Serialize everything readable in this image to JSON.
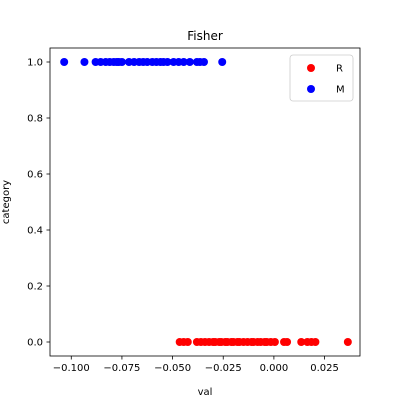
{
  "chart_data": {
    "type": "scatter",
    "title": "Fisher",
    "xlabel": "val",
    "ylabel": "category",
    "xlim": [
      -0.1105,
      0.0425
    ],
    "ylim": [
      -0.05,
      1.05
    ],
    "xticks": [
      -0.1,
      -0.075,
      -0.05,
      -0.025,
      0.0,
      0.025
    ],
    "xtick_labels": [
      "−0.100",
      "−0.075",
      "−0.050",
      "−0.025",
      "0.000",
      "0.025"
    ],
    "yticks": [
      0.0,
      0.2,
      0.4,
      0.6,
      0.8,
      1.0
    ],
    "ytick_labels": [
      "0.0",
      "0.2",
      "0.4",
      "0.6",
      "0.8",
      "1.0"
    ],
    "grid": false,
    "legend": "top-right",
    "series": [
      {
        "name": "R",
        "color": "#ff0000",
        "x": [
          -0.0465,
          -0.0445,
          -0.0425,
          -0.038,
          -0.036,
          -0.034,
          -0.032,
          -0.03,
          -0.029,
          -0.027,
          -0.026,
          -0.024,
          -0.023,
          -0.021,
          -0.02,
          -0.018,
          -0.017,
          -0.015,
          -0.013,
          -0.011,
          -0.01,
          -0.008,
          -0.0065,
          -0.0045,
          -0.0035,
          -0.0015,
          0.0005,
          0.005,
          0.0065,
          0.0135,
          0.0165,
          0.0185,
          0.0205,
          0.0365
        ],
        "y": [
          0,
          0,
          0,
          0,
          0,
          0,
          0,
          0,
          0,
          0,
          0,
          0,
          0,
          0,
          0,
          0,
          0,
          0,
          0,
          0,
          0,
          0,
          0,
          0,
          0,
          0,
          0,
          0,
          0,
          0,
          0,
          0,
          0,
          0
        ]
      },
      {
        "name": "M",
        "color": "#0000ff",
        "x": [
          -0.1035,
          -0.0935,
          -0.088,
          -0.0855,
          -0.083,
          -0.081,
          -0.079,
          -0.0775,
          -0.0765,
          -0.075,
          -0.0715,
          -0.069,
          -0.0665,
          -0.0645,
          -0.0625,
          -0.06,
          -0.058,
          -0.056,
          -0.0545,
          -0.0525,
          -0.0495,
          -0.047,
          -0.0445,
          -0.0415,
          -0.038,
          -0.0365,
          -0.0345,
          -0.0255
        ],
        "y": [
          1,
          1,
          1,
          1,
          1,
          1,
          1,
          1,
          1,
          1,
          1,
          1,
          1,
          1,
          1,
          1,
          1,
          1,
          1,
          1,
          1,
          1,
          1,
          1,
          1,
          1,
          1,
          1
        ]
      }
    ]
  }
}
